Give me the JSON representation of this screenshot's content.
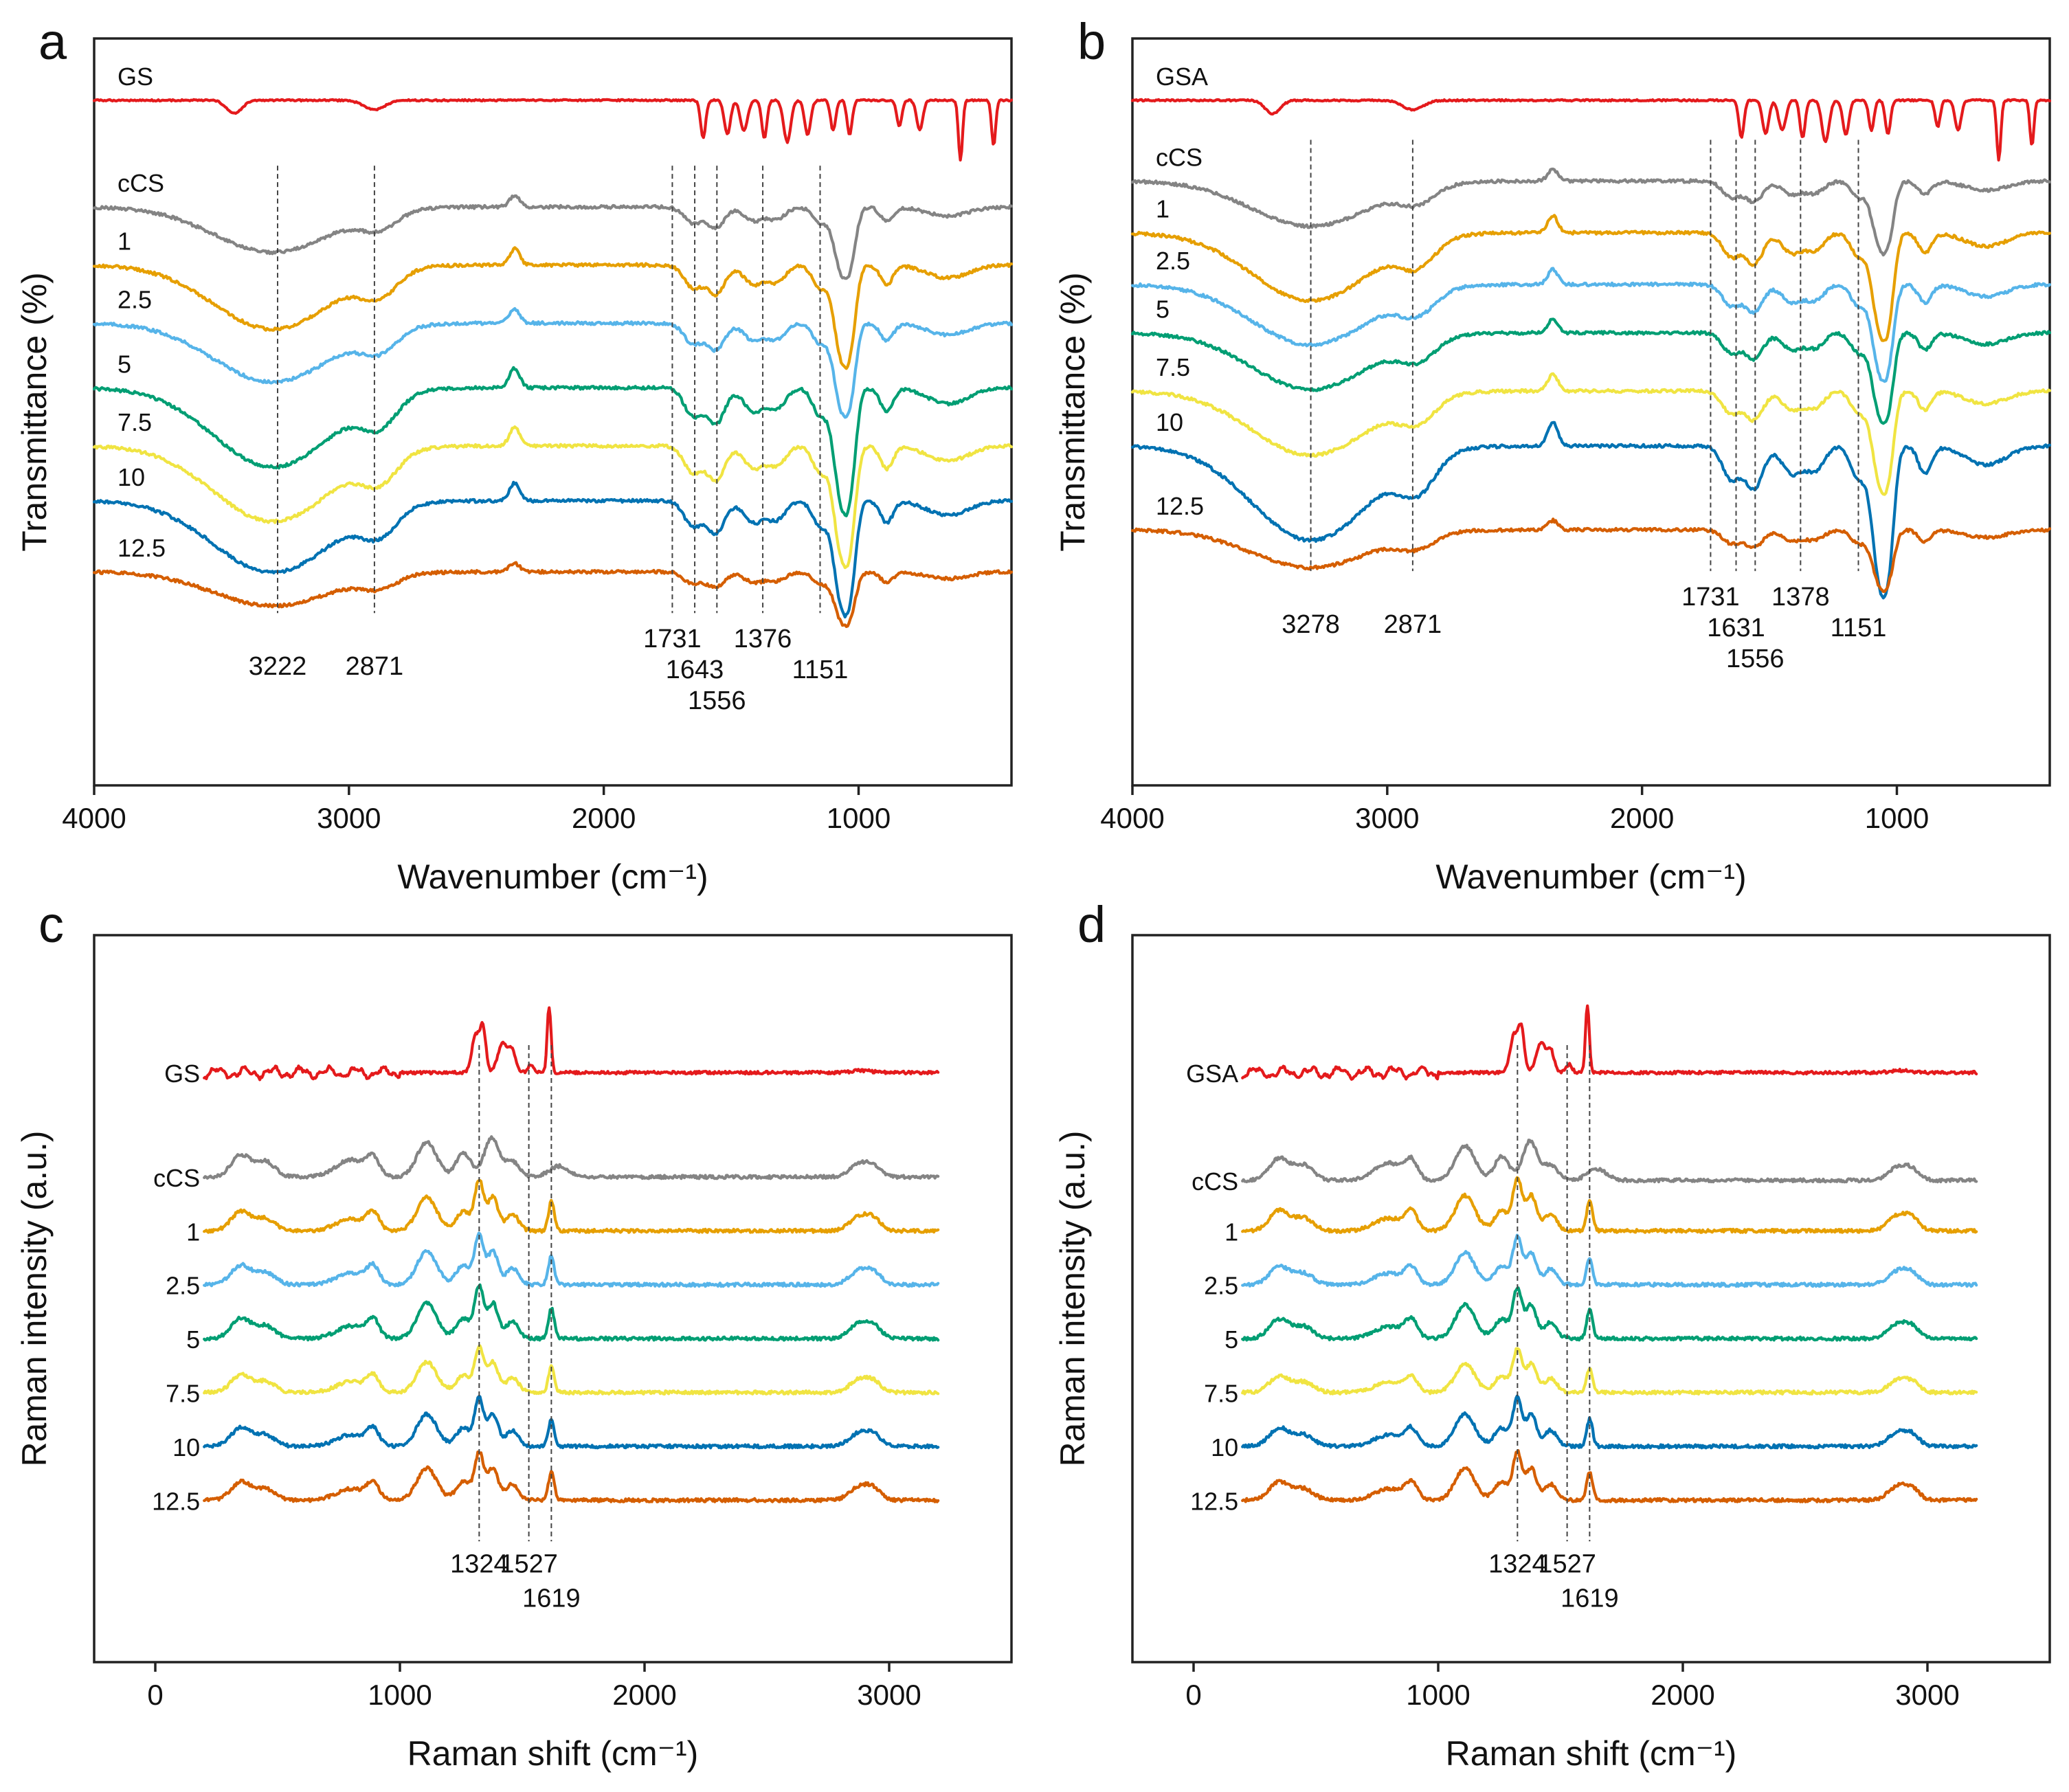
{
  "colors": {
    "GS": "#e41a1c",
    "GSA": "#e41a1c",
    "cCS": "#848484",
    "1": "#e69f00",
    "2.5": "#56b4e9",
    "5": "#009e73",
    "7.5": "#f0e442",
    "10": "#0072b2",
    "12.5": "#d55e00"
  },
  "chart_data": [
    {
      "panel": "a",
      "type": "line",
      "title": "",
      "xlabel": "Wavenumber (cm⁻¹)",
      "ylabel": "Transmittance (%)",
      "xlim": [
        4000,
        400
      ],
      "xticks": [
        4000,
        3000,
        2000,
        1000
      ],
      "series_labels": [
        "GS",
        "cCS",
        "1",
        "2.5",
        "5",
        "7.5",
        "10",
        "12.5"
      ],
      "guide_lines": [
        3280,
        2900,
        1731,
        1643,
        1556,
        1376,
        1151
      ],
      "peak_labels": [
        {
          "text": "3222",
          "x": 3280
        },
        {
          "text": "2871",
          "x": 2900
        },
        {
          "text": "1731",
          "x": 1731
        },
        {
          "text": "1643",
          "x": 1643
        },
        {
          "text": "1556",
          "x": 1556
        },
        {
          "text": "1376",
          "x": 1376
        },
        {
          "text": "1151",
          "x": 1151
        }
      ],
      "series": [
        {
          "name": "GS",
          "baseline": 0.0,
          "profile": "phenolic",
          "scale": 1.0
        },
        {
          "name": "cCS",
          "baseline": 1.65,
          "profile": "chitosan",
          "scale": 0.6
        },
        {
          "name": "1",
          "baseline": 2.55,
          "profile": "chitosan",
          "scale": 0.85
        },
        {
          "name": "2.5",
          "baseline": 3.45,
          "profile": "chitosan",
          "scale": 0.78
        },
        {
          "name": "5",
          "baseline": 4.45,
          "profile": "chitosan",
          "scale": 1.05
        },
        {
          "name": "7.5",
          "baseline": 5.35,
          "profile": "chitosan",
          "scale": 1.0
        },
        {
          "name": "10",
          "baseline": 6.2,
          "profile": "chitosan",
          "scale": 0.95
        },
        {
          "name": "12.5",
          "baseline": 7.3,
          "profile": "chitosan",
          "scale": 0.45
        }
      ]
    },
    {
      "panel": "b",
      "type": "line",
      "title": "",
      "xlabel": "Wavenumber (cm⁻¹)",
      "ylabel": "Transmittance (%)",
      "xlim": [
        4000,
        400
      ],
      "xticks": [
        4000,
        3000,
        2000,
        1000
      ],
      "series_labels": [
        "GSA",
        "cCS",
        "1",
        "2.5",
        "5",
        "7.5",
        "10",
        "12.5"
      ],
      "guide_lines": [
        3300,
        2900,
        1731,
        1631,
        1556,
        1378,
        1151
      ],
      "peak_labels": [
        {
          "text": "3278",
          "x": 3300
        },
        {
          "text": "2871",
          "x": 2900
        },
        {
          "text": "1731",
          "x": 1731
        },
        {
          "text": "1631",
          "x": 1631
        },
        {
          "text": "1556",
          "x": 1556
        },
        {
          "text": "1378",
          "x": 1378
        },
        {
          "text": "1151",
          "x": 1151
        }
      ],
      "series": [
        {
          "name": "GSA",
          "baseline": 0.0,
          "profile": "phenolic",
          "scale": 1.0
        },
        {
          "name": "cCS",
          "baseline": 1.25,
          "profile": "chitosan",
          "scale": 0.6
        },
        {
          "name": "1",
          "baseline": 2.05,
          "profile": "chitosan",
          "scale": 0.9
        },
        {
          "name": "2.5",
          "baseline": 2.85,
          "profile": "chitosan",
          "scale": 0.8
        },
        {
          "name": "5",
          "baseline": 3.6,
          "profile": "chitosan",
          "scale": 0.75
        },
        {
          "name": "7.5",
          "baseline": 4.5,
          "profile": "chitosan",
          "scale": 0.85
        },
        {
          "name": "10",
          "baseline": 5.35,
          "profile": "chitosan",
          "scale": 1.25
        },
        {
          "name": "12.5",
          "baseline": 6.65,
          "profile": "chitosan",
          "scale": 0.5
        }
      ]
    },
    {
      "panel": "c",
      "type": "line",
      "title": "",
      "xlabel": "Raman shift (cm⁻¹)",
      "ylabel": "Raman intensity (a.u.)",
      "xlim": [
        -250,
        3500
      ],
      "xticks": [
        0,
        1000,
        2000,
        3000
      ],
      "series_labels": [
        "GS",
        "cCS",
        "1",
        "2.5",
        "5",
        "7.5",
        "10",
        "12.5"
      ],
      "guide_lines": [
        1324,
        1527,
        1619
      ],
      "peak_labels": [
        {
          "text": "1527",
          "x": 1527
        },
        {
          "text": "1619",
          "x": 1619
        },
        {
          "text": "1324",
          "x": 1324
        }
      ],
      "series": [
        {
          "name": "GS",
          "baseline": 0.0,
          "profile": "phenolic",
          "scale": 1.0
        },
        {
          "name": "cCS",
          "baseline": 1.55,
          "profile": "chitosan",
          "scale": 0.9
        },
        {
          "name": "1",
          "baseline": 2.35,
          "profile": "blend",
          "scale": 1.0
        },
        {
          "name": "2.5",
          "baseline": 3.15,
          "profile": "blend",
          "scale": 1.0
        },
        {
          "name": "5",
          "baseline": 3.95,
          "profile": "blend",
          "scale": 1.05
        },
        {
          "name": "7.5",
          "baseline": 4.75,
          "profile": "blend",
          "scale": 0.9
        },
        {
          "name": "10",
          "baseline": 5.55,
          "profile": "blend",
          "scale": 0.95
        },
        {
          "name": "12.5",
          "baseline": 6.35,
          "profile": "blend",
          "scale": 0.95
        }
      ]
    },
    {
      "panel": "d",
      "type": "line",
      "title": "",
      "xlabel": "Raman shift (cm⁻¹)",
      "ylabel": "Raman intensity (a.u.)",
      "xlim": [
        -250,
        3500
      ],
      "xticks": [
        0,
        1000,
        2000,
        3000
      ],
      "series_labels": [
        "GSA",
        "cCS",
        "1",
        "2.5",
        "5",
        "7.5",
        "10",
        "12.5"
      ],
      "guide_lines": [
        1324,
        1527,
        1619
      ],
      "peak_labels": [
        {
          "text": "1527",
          "x": 1527
        },
        {
          "text": "1619",
          "x": 1619
        },
        {
          "text": "1324",
          "x": 1324
        }
      ],
      "series": [
        {
          "name": "GSA",
          "baseline": 0.0,
          "profile": "phenolic",
          "scale": 1.0
        },
        {
          "name": "cCS",
          "baseline": 1.6,
          "profile": "chitosan",
          "scale": 0.9
        },
        {
          "name": "1",
          "baseline": 2.35,
          "profile": "blend",
          "scale": 1.05
        },
        {
          "name": "2.5",
          "baseline": 3.15,
          "profile": "blend",
          "scale": 0.95
        },
        {
          "name": "5",
          "baseline": 3.95,
          "profile": "blend",
          "scale": 1.0
        },
        {
          "name": "7.5",
          "baseline": 4.75,
          "profile": "blend",
          "scale": 0.85
        },
        {
          "name": "10",
          "baseline": 5.55,
          "profile": "blend",
          "scale": 0.95
        },
        {
          "name": "12.5",
          "baseline": 6.35,
          "profile": "blend",
          "scale": 0.95
        }
      ]
    }
  ]
}
